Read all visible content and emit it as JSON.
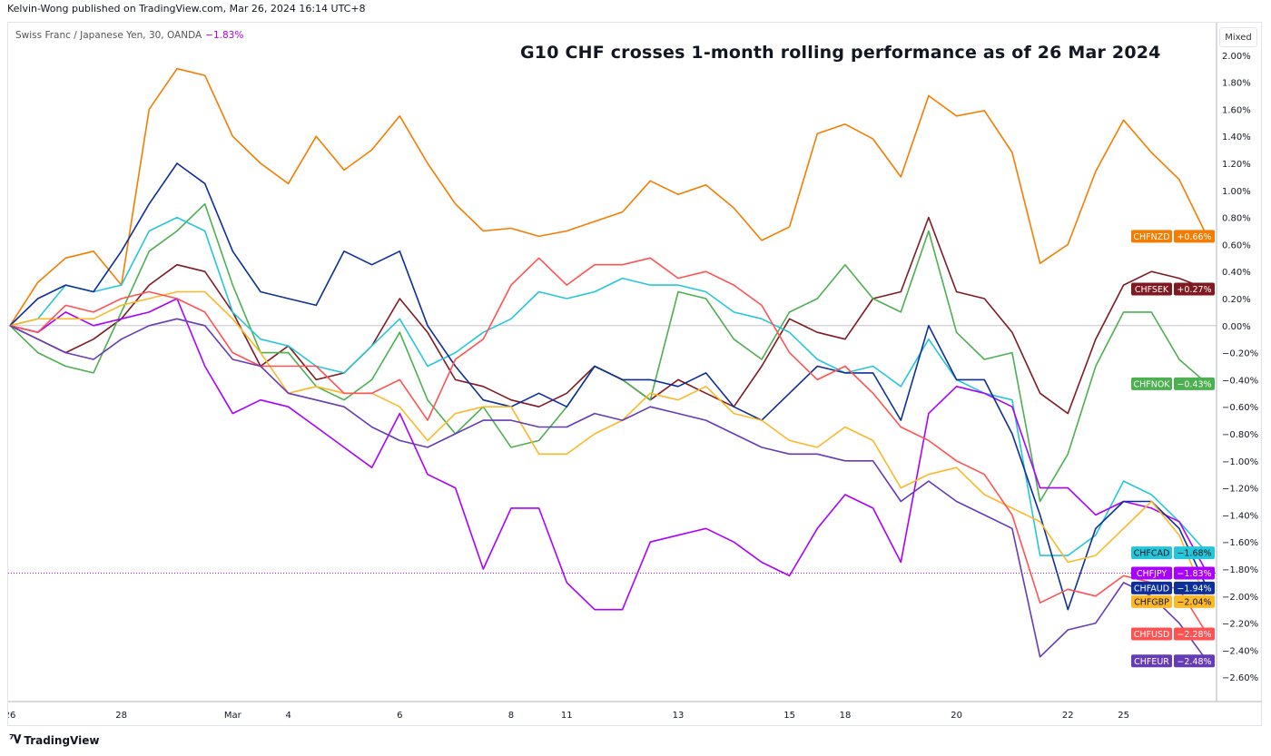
{
  "header": {
    "published": "Kelvin-Wong published on TradingView.com, Mar 26, 2024 16:14 UTC+8",
    "symbol": "Swiss Franc / Japanese Yen, 30, OANDA",
    "symbol_change": "−1.83%"
  },
  "scale_button": "Mixed",
  "footer": {
    "brand": "TradingView",
    "logo_icon": "tradingview-logo-icon"
  },
  "chart_data": {
    "type": "line",
    "title": "G10 CHF crosses 1-month rolling performance as of 26 Mar 2024",
    "xlabel": "",
    "ylabel": "",
    "ylim": [
      -2.78,
      2.24
    ],
    "y_unit": "%",
    "y_ticks": [
      "2.00%",
      "1.80%",
      "1.60%",
      "1.40%",
      "1.20%",
      "1.00%",
      "0.80%",
      "0.60%",
      "0.40%",
      "0.20%",
      "0.00%",
      "−0.20%",
      "−0.40%",
      "−0.60%",
      "−0.80%",
      "−1.00%",
      "−1.20%",
      "−1.40%",
      "−1.60%",
      "−1.80%",
      "−2.00%",
      "−2.20%",
      "−2.40%",
      "−2.60%"
    ],
    "y_tick_values": [
      2.0,
      1.8,
      1.6,
      1.4,
      1.2,
      1.0,
      0.8,
      0.6,
      0.4,
      0.2,
      0.0,
      -0.2,
      -0.4,
      -0.6,
      -0.8,
      -1.0,
      -1.2,
      -1.4,
      -1.6,
      -1.8,
      -2.0,
      -2.2,
      -2.4,
      -2.6
    ],
    "x_ticks": [
      {
        "label": "26",
        "date": "2024-02-26"
      },
      {
        "label": "28",
        "date": "2024-02-28"
      },
      {
        "label": "Mar",
        "date": "2024-03-01"
      },
      {
        "label": "4",
        "date": "2024-03-04"
      },
      {
        "label": "6",
        "date": "2024-03-06"
      },
      {
        "label": "8",
        "date": "2024-03-08"
      },
      {
        "label": "11",
        "date": "2024-03-11"
      },
      {
        "label": "13",
        "date": "2024-03-13"
      },
      {
        "label": "15",
        "date": "2024-03-15"
      },
      {
        "label": "18",
        "date": "2024-03-18"
      },
      {
        "label": "20",
        "date": "2024-03-20"
      },
      {
        "label": "22",
        "date": "2024-03-22"
      },
      {
        "label": "25",
        "date": "2024-03-25"
      }
    ],
    "grid": false,
    "zero_line": true,
    "highlight_line": {
      "series": "CHFJPY",
      "value": -1.83,
      "style": "dotted"
    },
    "legend": "right-end-labels",
    "x": [
      "2024-02-26 00:00",
      "2024-02-26 12:00",
      "2024-02-27 00:00",
      "2024-02-27 12:00",
      "2024-02-28 00:00",
      "2024-02-28 12:00",
      "2024-02-29 00:00",
      "2024-02-29 12:00",
      "2024-03-01 00:00",
      "2024-03-01 12:00",
      "2024-03-04 00:00",
      "2024-03-04 12:00",
      "2024-03-05 00:00",
      "2024-03-05 12:00",
      "2024-03-06 00:00",
      "2024-03-06 12:00",
      "2024-03-07 00:00",
      "2024-03-07 12:00",
      "2024-03-08 00:00",
      "2024-03-08 12:00",
      "2024-03-11 00:00",
      "2024-03-11 12:00",
      "2024-03-12 00:00",
      "2024-03-12 12:00",
      "2024-03-13 00:00",
      "2024-03-13 12:00",
      "2024-03-14 00:00",
      "2024-03-14 12:00",
      "2024-03-15 00:00",
      "2024-03-15 12:00",
      "2024-03-18 00:00",
      "2024-03-18 12:00",
      "2024-03-19 00:00",
      "2024-03-19 12:00",
      "2024-03-20 00:00",
      "2024-03-20 12:00",
      "2024-03-21 00:00",
      "2024-03-21 12:00",
      "2024-03-22 00:00",
      "2024-03-22 12:00",
      "2024-03-25 00:00",
      "2024-03-25 12:00",
      "2024-03-26 00:00",
      "2024-03-26 12:00"
    ],
    "series": [
      {
        "name": "CHFNZD",
        "last_label": "+0.66%",
        "color": "#f57c00",
        "text_color": "#ffffff",
        "values": [
          0,
          0.32,
          0.5,
          0.55,
          0.3,
          1.6,
          1.9,
          1.85,
          1.4,
          1.2,
          1.05,
          1.4,
          1.15,
          1.3,
          1.55,
          1.2,
          0.9,
          0.7,
          0.72,
          0.66,
          0.7,
          0.77,
          0.84,
          1.07,
          0.97,
          1.04,
          0.87,
          0.63,
          0.73,
          1.42,
          1.49,
          1.38,
          1.1,
          1.7,
          1.55,
          1.59,
          1.28,
          0.46,
          0.6,
          1.14,
          1.52,
          1.28,
          1.08,
          0.66
        ]
      },
      {
        "name": "CHFSEK",
        "last_label": "+0.27%",
        "color": "#801922",
        "text_color": "#ffffff",
        "values": [
          0,
          -0.1,
          -0.2,
          -0.1,
          0.05,
          0.3,
          0.45,
          0.4,
          0.1,
          -0.3,
          -0.15,
          -0.4,
          -0.35,
          -0.15,
          0.2,
          -0.05,
          -0.4,
          -0.45,
          -0.55,
          -0.6,
          -0.5,
          -0.3,
          -0.4,
          -0.55,
          -0.4,
          -0.5,
          -0.6,
          -0.3,
          0.05,
          -0.05,
          -0.1,
          0.2,
          0.25,
          0.8,
          0.25,
          0.2,
          -0.05,
          -0.5,
          -0.65,
          -0.1,
          0.3,
          0.4,
          0.35,
          0.27
        ]
      },
      {
        "name": "CHFNOK",
        "last_label": "−0.43%",
        "color": "#4caf50",
        "text_color": "#ffffff",
        "values": [
          0,
          -0.2,
          -0.3,
          -0.35,
          0.1,
          0.55,
          0.7,
          0.9,
          0.3,
          -0.2,
          -0.2,
          -0.45,
          -0.55,
          -0.4,
          -0.05,
          -0.55,
          -0.8,
          -0.6,
          -0.9,
          -0.85,
          -0.6,
          -0.3,
          -0.4,
          -0.55,
          0.25,
          0.2,
          -0.1,
          -0.25,
          0.1,
          0.2,
          0.45,
          0.2,
          0.1,
          0.7,
          -0.05,
          -0.25,
          -0.2,
          -1.3,
          -0.95,
          -0.3,
          0.1,
          0.1,
          -0.25,
          -0.43
        ]
      },
      {
        "name": "CHFCAD",
        "last_label": "−1.68%",
        "color": "#26c6da",
        "text_color": "#131722",
        "values": [
          0,
          0.05,
          0.3,
          0.25,
          0.3,
          0.7,
          0.8,
          0.7,
          0.1,
          -0.1,
          -0.15,
          -0.3,
          -0.35,
          -0.15,
          0.05,
          -0.3,
          -0.2,
          -0.05,
          0.05,
          0.25,
          0.2,
          0.25,
          0.35,
          0.3,
          0.3,
          0.25,
          0.1,
          0.05,
          -0.05,
          -0.25,
          -0.35,
          -0.3,
          -0.45,
          -0.1,
          -0.4,
          -0.5,
          -0.55,
          -1.7,
          -1.7,
          -1.55,
          -1.15,
          -1.25,
          -1.45,
          -1.68
        ]
      },
      {
        "name": "CHFJPY",
        "last_label": "−1.83%",
        "color": "#aa00ff",
        "text_color": "#ffffff",
        "values": [
          0,
          -0.05,
          0.1,
          0,
          0.05,
          0.1,
          0.2,
          -0.3,
          -0.65,
          -0.55,
          -0.6,
          -0.75,
          -0.9,
          -1.05,
          -0.65,
          -1.1,
          -1.2,
          -1.8,
          -1.35,
          -1.35,
          -1.9,
          -2.1,
          -2.1,
          -1.6,
          -1.55,
          -1.5,
          -1.6,
          -1.75,
          -1.85,
          -1.5,
          -1.25,
          -1.35,
          -1.75,
          -0.65,
          -0.45,
          -0.5,
          -0.6,
          -1.2,
          -1.2,
          -1.4,
          -1.3,
          -1.35,
          -1.45,
          -1.83
        ]
      },
      {
        "name": "CHFAUD",
        "last_label": "−1.94%",
        "color": "#0d2f9a",
        "text_color": "#ffffff",
        "values": [
          0,
          0.2,
          0.3,
          0.25,
          0.55,
          0.9,
          1.2,
          1.05,
          0.55,
          0.25,
          0.2,
          0.15,
          0.55,
          0.45,
          0.55,
          0,
          -0.3,
          -0.55,
          -0.6,
          -0.5,
          -0.6,
          -0.3,
          -0.4,
          -0.4,
          -0.45,
          -0.35,
          -0.6,
          -0.7,
          -0.5,
          -0.3,
          -0.35,
          -0.35,
          -0.7,
          0,
          -0.4,
          -0.4,
          -0.8,
          -1.4,
          -2.1,
          -1.5,
          -1.3,
          -1.3,
          -1.5,
          -1.94
        ]
      },
      {
        "name": "CHFGBP",
        "last_label": "−2.04%",
        "color": "#fbb829",
        "text_color": "#131722",
        "values": [
          0,
          0.05,
          0.05,
          0.05,
          0.15,
          0.2,
          0.25,
          0.25,
          0.05,
          -0.2,
          -0.5,
          -0.45,
          -0.5,
          -0.5,
          -0.6,
          -0.85,
          -0.65,
          -0.6,
          -0.6,
          -0.95,
          -0.95,
          -0.8,
          -0.7,
          -0.5,
          -0.55,
          -0.45,
          -0.65,
          -0.7,
          -0.85,
          -0.9,
          -0.75,
          -0.85,
          -1.2,
          -1.1,
          -1.05,
          -1.25,
          -1.35,
          -1.45,
          -1.75,
          -1.7,
          -1.5,
          -1.3,
          -1.55,
          -2.04
        ]
      },
      {
        "name": "CHFUSD",
        "last_label": "−2.28%",
        "color": "#ff5252",
        "text_color": "#ffffff",
        "values": [
          0,
          -0.05,
          0.15,
          0.1,
          0.2,
          0.25,
          0.2,
          0.1,
          -0.2,
          -0.3,
          -0.3,
          -0.3,
          -0.5,
          -0.5,
          -0.4,
          -0.7,
          -0.25,
          -0.1,
          0.3,
          0.5,
          0.3,
          0.45,
          0.45,
          0.5,
          0.35,
          0.4,
          0.3,
          0.15,
          -0.2,
          -0.4,
          -0.3,
          -0.5,
          -0.75,
          -0.85,
          -1.0,
          -1.1,
          -1.4,
          -2.05,
          -1.95,
          -2.0,
          -1.85,
          -1.9,
          -1.95,
          -2.28
        ]
      },
      {
        "name": "CHFEUR",
        "last_label": "−2.48%",
        "color": "#673ab7",
        "text_color": "#ffffff",
        "values": [
          0,
          -0.1,
          -0.2,
          -0.25,
          -0.1,
          0,
          0.05,
          0,
          -0.25,
          -0.3,
          -0.5,
          -0.55,
          -0.6,
          -0.75,
          -0.85,
          -0.9,
          -0.8,
          -0.7,
          -0.7,
          -0.75,
          -0.75,
          -0.65,
          -0.7,
          -0.6,
          -0.65,
          -0.7,
          -0.8,
          -0.9,
          -0.95,
          -0.95,
          -1.0,
          -1.0,
          -1.3,
          -1.15,
          -1.3,
          -1.4,
          -1.5,
          -2.45,
          -2.25,
          -2.2,
          -1.9,
          -2.0,
          -2.2,
          -2.48
        ]
      }
    ]
  }
}
